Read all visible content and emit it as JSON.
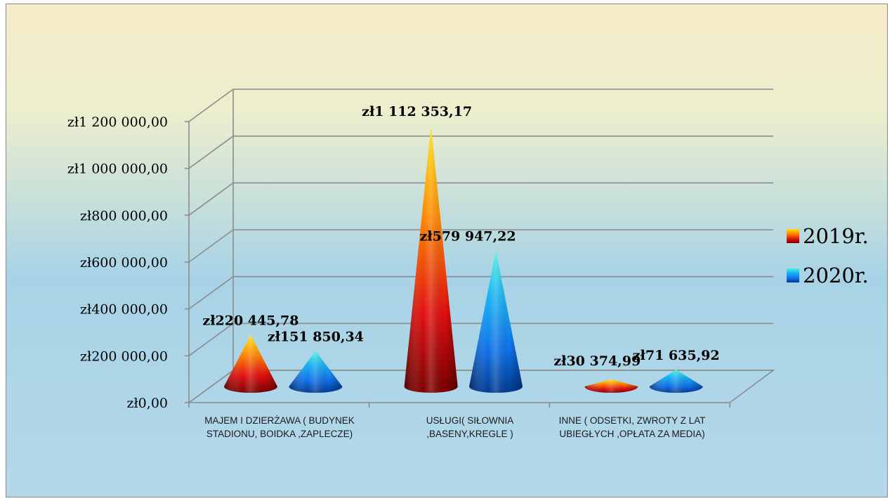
{
  "chart_data": {
    "type": "bar",
    "shape": "cone",
    "categories": [
      "MAJEM I DZIERŻAWA ( BUDYNEK STADIONU, BOIDKA ,ZAPLECZE)",
      "USŁUGI( SIŁOWNIA ,BASENY,KREGLE )",
      "INNE ( ODSETKI, ZWROTY Z LAT UBIEGŁYCH ,OPŁATA ZA MEDIA)"
    ],
    "series": [
      {
        "name": "2019r.",
        "values": [
          220445.78,
          1112353.17,
          30374.99
        ],
        "labels": [
          "zł220 445,78",
          "zł1 112 353,17",
          "zł30 374,99"
        ]
      },
      {
        "name": "2020r.",
        "values": [
          151850.34,
          579947.22,
          71635.92
        ],
        "labels": [
          "zł151 850,34",
          "zł579 947,22",
          "zł71 635,92"
        ]
      }
    ],
    "ylim": [
      0,
      1200000
    ],
    "yticks": [
      0,
      200000,
      400000,
      600000,
      800000,
      1000000,
      1200000
    ],
    "ytick_labels": [
      "zł0,00",
      "zł200 000,00",
      "zł400 000,00",
      "zł600 000,00",
      "zł800 000,00",
      "zł1 000 000,00",
      "zł1 200 000,00"
    ],
    "grid": true,
    "legend_position": "right",
    "colors": {
      "series_2019": [
        "#ffe000",
        "#ff8a00",
        "#e01010",
        "#7a0000"
      ],
      "series_2020": [
        "#40f0e0",
        "#18b0f0",
        "#1070e8",
        "#003a90"
      ],
      "background_top": "#f6ecc8",
      "background_bottom": "#b4d8ea"
    }
  }
}
